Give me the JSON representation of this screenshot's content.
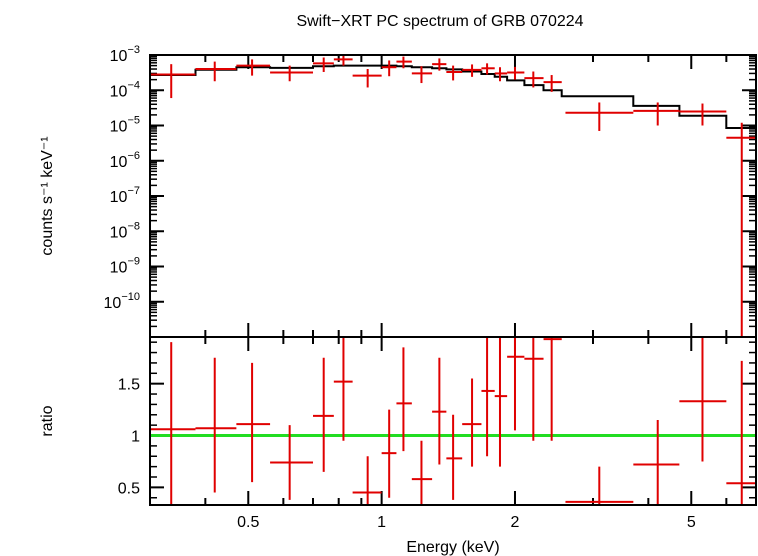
{
  "chart_data": [
    {
      "type": "scatter",
      "title": "Swift−XRT PC spectrum of GRB 070224",
      "ylabel": "counts s⁻¹ keV⁻¹",
      "xlabel": "",
      "xscale": "log",
      "yscale": "log",
      "xlim": [
        0.3,
        7.0
      ],
      "ylim": [
        1e-11,
        0.001
      ],
      "y_tick_labels": [
        {
          "v": 0.001,
          "base": "10",
          "exp": "−3"
        },
        {
          "v": 0.0001,
          "base": "10",
          "exp": "−4"
        },
        {
          "v": 1e-05,
          "base": "10",
          "exp": "−5"
        },
        {
          "v": 1e-06,
          "base": "10",
          "exp": "−6"
        },
        {
          "v": 1e-07,
          "base": "10",
          "exp": "−7"
        },
        {
          "v": 1e-08,
          "base": "10",
          "exp": "−8"
        },
        {
          "v": 1e-09,
          "base": "10",
          "exp": "−9"
        },
        {
          "v": 1e-10,
          "base": "10",
          "exp": "−10"
        }
      ],
      "series": [
        {
          "color": "#e00000",
          "points": [
            {
              "x": 0.335,
              "xlo": 0.3,
              "xhi": 0.38,
              "y": 0.00028,
              "ylo": 6e-05,
              "yhi": 0.00055
            },
            {
              "x": 0.42,
              "xlo": 0.38,
              "xhi": 0.47,
              "y": 0.0004,
              "ylo": 0.00018,
              "yhi": 0.00065
            },
            {
              "x": 0.51,
              "xlo": 0.47,
              "xhi": 0.56,
              "y": 0.0005,
              "ylo": 0.00026,
              "yhi": 0.00075
            },
            {
              "x": 0.62,
              "xlo": 0.56,
              "xhi": 0.7,
              "y": 0.00032,
              "ylo": 0.00018,
              "yhi": 0.0005
            },
            {
              "x": 0.74,
              "xlo": 0.7,
              "xhi": 0.78,
              "y": 0.00058,
              "ylo": 0.00033,
              "yhi": 0.00085
            },
            {
              "x": 0.82,
              "xlo": 0.78,
              "xhi": 0.86,
              "y": 0.00075,
              "ylo": 0.0005,
              "yhi": 0.00095
            },
            {
              "x": 0.93,
              "xlo": 0.86,
              "xhi": 1.0,
              "y": 0.00026,
              "ylo": 0.00012,
              "yhi": 0.0004
            },
            {
              "x": 1.04,
              "xlo": 1.0,
              "xhi": 1.08,
              "y": 0.00045,
              "ylo": 0.00025,
              "yhi": 0.0007
            },
            {
              "x": 1.12,
              "xlo": 1.08,
              "xhi": 1.17,
              "y": 0.00065,
              "ylo": 0.00042,
              "yhi": 0.0009
            },
            {
              "x": 1.23,
              "xlo": 1.17,
              "xhi": 1.3,
              "y": 0.0003,
              "ylo": 0.00016,
              "yhi": 0.00048
            },
            {
              "x": 1.35,
              "xlo": 1.3,
              "xhi": 1.4,
              "y": 0.00055,
              "ylo": 0.00036,
              "yhi": 0.0008
            },
            {
              "x": 1.45,
              "xlo": 1.4,
              "xhi": 1.52,
              "y": 0.00033,
              "ylo": 0.00019,
              "yhi": 0.0005
            },
            {
              "x": 1.6,
              "xlo": 1.52,
              "xhi": 1.68,
              "y": 0.00038,
              "ylo": 0.00024,
              "yhi": 0.00054
            },
            {
              "x": 1.73,
              "xlo": 1.68,
              "xhi": 1.8,
              "y": 0.00042,
              "ylo": 0.00028,
              "yhi": 0.00058
            },
            {
              "x": 1.85,
              "xlo": 1.8,
              "xhi": 1.92,
              "y": 0.0003,
              "ylo": 0.00018,
              "yhi": 0.00045
            },
            {
              "x": 2.0,
              "xlo": 1.92,
              "xhi": 2.1,
              "y": 0.00032,
              "ylo": 0.0002,
              "yhi": 0.00046
            },
            {
              "x": 2.2,
              "xlo": 2.1,
              "xhi": 2.32,
              "y": 0.00022,
              "ylo": 0.00012,
              "yhi": 0.00034
            },
            {
              "x": 2.42,
              "xlo": 2.32,
              "xhi": 2.55,
              "y": 0.00017,
              "ylo": 9e-05,
              "yhi": 0.00027
            },
            {
              "x": 3.1,
              "xlo": 2.6,
              "xhi": 3.7,
              "y": 2.3e-05,
              "ylo": 7e-06,
              "yhi": 4.5e-05
            },
            {
              "x": 4.2,
              "xlo": 3.7,
              "xhi": 4.7,
              "y": 2.6e-05,
              "ylo": 1e-05,
              "yhi": 4.5e-05
            },
            {
              "x": 5.3,
              "xlo": 4.7,
              "xhi": 6.0,
              "y": 2.5e-05,
              "ylo": 1e-05,
              "yhi": 4.2e-05
            },
            {
              "x": 6.5,
              "xlo": 6.0,
              "xhi": 7.0,
              "y": 4.5e-06,
              "ylo": 1e-11,
              "yhi": 1.2e-05
            }
          ]
        },
        {
          "color": "#000000",
          "type": "step",
          "steps": [
            {
              "x0": 0.3,
              "x1": 0.38,
              "y": 0.00027
            },
            {
              "x0": 0.38,
              "x1": 0.47,
              "y": 0.00038
            },
            {
              "x0": 0.47,
              "x1": 0.56,
              "y": 0.00045
            },
            {
              "x0": 0.56,
              "x1": 0.7,
              "y": 0.00043
            },
            {
              "x0": 0.7,
              "x1": 0.78,
              "y": 0.00048
            },
            {
              "x0": 0.78,
              "x1": 0.86,
              "y": 0.0005
            },
            {
              "x0": 0.86,
              "x1": 1.0,
              "y": 0.0005
            },
            {
              "x0": 1.0,
              "x1": 1.08,
              "y": 0.0005
            },
            {
              "x0": 1.08,
              "x1": 1.17,
              "y": 0.00048
            },
            {
              "x0": 1.17,
              "x1": 1.3,
              "y": 0.00045
            },
            {
              "x0": 1.3,
              "x1": 1.4,
              "y": 0.00042
            },
            {
              "x0": 1.4,
              "x1": 1.52,
              "y": 0.00039
            },
            {
              "x0": 1.52,
              "x1": 1.68,
              "y": 0.00034
            },
            {
              "x0": 1.68,
              "x1": 1.8,
              "y": 0.00029
            },
            {
              "x0": 1.8,
              "x1": 1.92,
              "y": 0.00024
            },
            {
              "x0": 1.92,
              "x1": 2.1,
              "y": 0.00019
            },
            {
              "x0": 2.1,
              "x1": 2.32,
              "y": 0.00014
            },
            {
              "x0": 2.32,
              "x1": 2.55,
              "y": 0.0001
            },
            {
              "x0": 2.55,
              "x1": 3.7,
              "y": 6.8e-05
            },
            {
              "x0": 3.7,
              "x1": 4.7,
              "y": 3.6e-05
            },
            {
              "x0": 4.7,
              "x1": 6.0,
              "y": 1.9e-05
            },
            {
              "x0": 6.0,
              "x1": 7.0,
              "y": 8.5e-06
            }
          ]
        }
      ]
    },
    {
      "type": "scatter",
      "xlabel": "Energy (keV)",
      "ylabel": "ratio",
      "xscale": "log",
      "xlim": [
        0.3,
        7.0
      ],
      "ylim": [
        0.33,
        1.95
      ],
      "x_tick_labels": [
        {
          "v": 0.5,
          "label": "0.5"
        },
        {
          "v": 1,
          "label": "1"
        },
        {
          "v": 2,
          "label": "2"
        },
        {
          "v": 5,
          "label": "5"
        }
      ],
      "y_tick_labels": [
        {
          "v": 0.5,
          "label": "0.5"
        },
        {
          "v": 1,
          "label": "1"
        },
        {
          "v": 1.5,
          "label": "1.5"
        }
      ],
      "reference_line": {
        "y": 1.0,
        "color": "#22dd22"
      },
      "series": [
        {
          "color": "#e00000",
          "points": [
            {
              "x": 0.335,
              "xlo": 0.3,
              "xhi": 0.38,
              "y": 1.06,
              "ylo": 0.33,
              "yhi": 1.9
            },
            {
              "x": 0.42,
              "xlo": 0.38,
              "xhi": 0.47,
              "y": 1.07,
              "ylo": 0.45,
              "yhi": 1.75
            },
            {
              "x": 0.51,
              "xlo": 0.47,
              "xhi": 0.56,
              "y": 1.11,
              "ylo": 0.55,
              "yhi": 1.7
            },
            {
              "x": 0.62,
              "xlo": 0.56,
              "xhi": 0.7,
              "y": 0.74,
              "ylo": 0.38,
              "yhi": 1.1
            },
            {
              "x": 0.74,
              "xlo": 0.7,
              "xhi": 0.78,
              "y": 1.19,
              "ylo": 0.65,
              "yhi": 1.75
            },
            {
              "x": 0.82,
              "xlo": 0.78,
              "xhi": 0.86,
              "y": 1.52,
              "ylo": 0.95,
              "yhi": 1.95
            },
            {
              "x": 0.93,
              "xlo": 0.86,
              "xhi": 1.0,
              "y": 0.45,
              "ylo": 0.33,
              "yhi": 0.8
            },
            {
              "x": 1.04,
              "xlo": 1.0,
              "xhi": 1.08,
              "y": 0.83,
              "ylo": 0.4,
              "yhi": 1.25
            },
            {
              "x": 1.12,
              "xlo": 1.08,
              "xhi": 1.17,
              "y": 1.31,
              "ylo": 0.85,
              "yhi": 1.85
            },
            {
              "x": 1.23,
              "xlo": 1.17,
              "xhi": 1.3,
              "y": 0.58,
              "ylo": 0.33,
              "yhi": 0.95
            },
            {
              "x": 1.35,
              "xlo": 1.3,
              "xhi": 1.4,
              "y": 1.23,
              "ylo": 0.72,
              "yhi": 1.75
            },
            {
              "x": 1.45,
              "xlo": 1.4,
              "xhi": 1.52,
              "y": 0.78,
              "ylo": 0.38,
              "yhi": 1.2
            },
            {
              "x": 1.6,
              "xlo": 1.52,
              "xhi": 1.68,
              "y": 1.11,
              "ylo": 0.7,
              "yhi": 1.55
            },
            {
              "x": 1.73,
              "xlo": 1.68,
              "xhi": 1.8,
              "y": 1.43,
              "ylo": 0.8,
              "yhi": 1.95
            },
            {
              "x": 1.85,
              "xlo": 1.8,
              "xhi": 1.92,
              "y": 1.38,
              "ylo": 0.7,
              "yhi": 1.95
            },
            {
              "x": 2.0,
              "xlo": 1.92,
              "xhi": 2.1,
              "y": 1.76,
              "ylo": 1.05,
              "yhi": 1.95
            },
            {
              "x": 2.2,
              "xlo": 2.1,
              "xhi": 2.32,
              "y": 1.74,
              "ylo": 0.95,
              "yhi": 1.95
            },
            {
              "x": 2.42,
              "xlo": 2.32,
              "xhi": 2.55,
              "y": 1.93,
              "ylo": 0.95,
              "yhi": 1.95
            },
            {
              "x": 3.1,
              "xlo": 2.6,
              "xhi": 3.7,
              "y": 0.36,
              "ylo": 0.33,
              "yhi": 0.7
            },
            {
              "x": 4.2,
              "xlo": 3.7,
              "xhi": 4.7,
              "y": 0.72,
              "ylo": 0.33,
              "yhi": 1.15
            },
            {
              "x": 5.3,
              "xlo": 4.7,
              "xhi": 6.0,
              "y": 1.33,
              "ylo": 0.75,
              "yhi": 1.95
            },
            {
              "x": 6.5,
              "xlo": 6.0,
              "xhi": 7.0,
              "y": 0.54,
              "ylo": 0.33,
              "yhi": 1.72
            }
          ]
        }
      ]
    }
  ]
}
